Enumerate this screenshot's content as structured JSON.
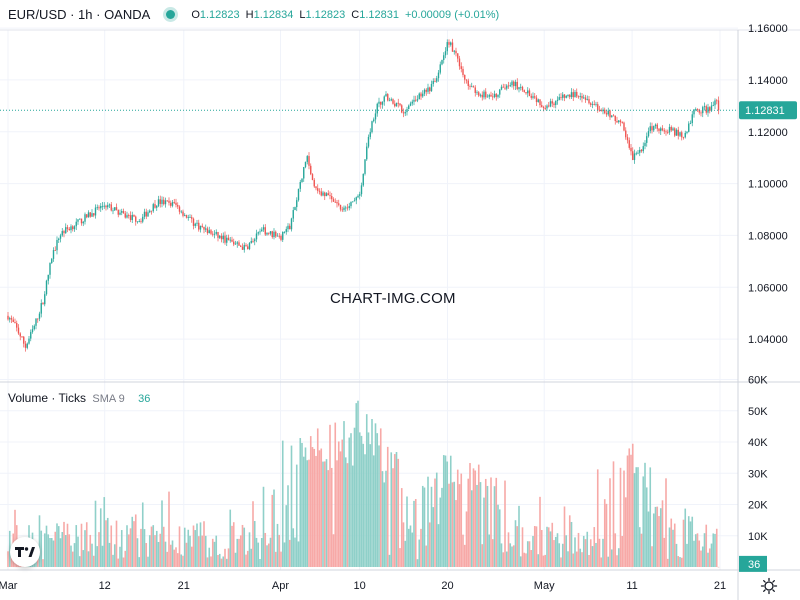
{
  "header": {
    "symbol": "EUR/USD · 1h · OANDA",
    "open_key": "O",
    "open": "1.12823",
    "high_key": "H",
    "high": "1.12834",
    "low_key": "L",
    "low": "1.12823",
    "close_key": "C",
    "close": "1.12831",
    "change": "+0.00009 (+0.01%)"
  },
  "volume_legend": {
    "title": "Volume · Ticks",
    "sma": "SMA 9",
    "value": "36"
  },
  "watermark": "CHART-IMG.COM",
  "colors": {
    "up": "#26a69a",
    "down": "#ef5350",
    "up_vol": "#8fd0c9",
    "down_vol": "#f7a9a7",
    "grid": "#f0f3fa",
    "text": "#131722"
  },
  "chart_data": {
    "type": "candlestick",
    "title": "EUR/USD · 1h · OANDA",
    "price_axis": {
      "ylim": [
        1.028,
        1.166
      ],
      "ticks": [
        1.04,
        1.06,
        1.08,
        1.1,
        1.12,
        1.14,
        1.16
      ],
      "tick_labels": [
        "1.04000",
        "1.06000",
        "1.08000",
        "1.10000",
        "1.12000",
        "1.14000",
        "1.16000"
      ],
      "last_price": 1.12831,
      "last_price_label": "1.12831"
    },
    "volume_axis": {
      "ylim": [
        0,
        60000
      ],
      "ticks": [
        10000,
        20000,
        30000,
        40000,
        50000,
        60000
      ],
      "tick_labels": [
        "10K",
        "20K",
        "30K",
        "40K",
        "50K",
        "60K"
      ],
      "last_value_label": "36"
    },
    "x_axis": {
      "range_days": [
        0,
        82
      ],
      "tick_days": [
        0,
        11,
        20,
        31,
        40,
        50,
        61,
        71,
        81
      ],
      "tick_labels": [
        "Mar",
        "12",
        "21",
        "Apr",
        "10",
        "20",
        "May",
        "11",
        "21"
      ]
    },
    "price_path": [
      {
        "day": 0,
        "close": 1.049
      },
      {
        "day": 1,
        "close": 1.044
      },
      {
        "day": 2,
        "close": 1.037
      },
      {
        "day": 3,
        "close": 1.045
      },
      {
        "day": 4,
        "close": 1.055
      },
      {
        "day": 5,
        "close": 1.072
      },
      {
        "day": 6,
        "close": 1.081
      },
      {
        "day": 8,
        "close": 1.085
      },
      {
        "day": 11,
        "close": 1.092
      },
      {
        "day": 13,
        "close": 1.088
      },
      {
        "day": 15,
        "close": 1.086
      },
      {
        "day": 17,
        "close": 1.093
      },
      {
        "day": 19,
        "close": 1.092
      },
      {
        "day": 21,
        "close": 1.085
      },
      {
        "day": 23,
        "close": 1.081
      },
      {
        "day": 25,
        "close": 1.078
      },
      {
        "day": 27,
        "close": 1.075
      },
      {
        "day": 29,
        "close": 1.082
      },
      {
        "day": 31,
        "close": 1.079
      },
      {
        "day": 32,
        "close": 1.083
      },
      {
        "day": 33,
        "close": 1.097
      },
      {
        "day": 34,
        "close": 1.11
      },
      {
        "day": 35,
        "close": 1.098
      },
      {
        "day": 37,
        "close": 1.093
      },
      {
        "day": 38,
        "close": 1.09
      },
      {
        "day": 39,
        "close": 1.092
      },
      {
        "day": 40,
        "close": 1.095
      },
      {
        "day": 41,
        "close": 1.118
      },
      {
        "day": 42,
        "close": 1.13
      },
      {
        "day": 43,
        "close": 1.134
      },
      {
        "day": 45,
        "close": 1.128
      },
      {
        "day": 46,
        "close": 1.131
      },
      {
        "day": 47,
        "close": 1.135
      },
      {
        "day": 48,
        "close": 1.136
      },
      {
        "day": 49,
        "close": 1.143
      },
      {
        "day": 50,
        "close": 1.155
      },
      {
        "day": 51,
        "close": 1.15
      },
      {
        "day": 52,
        "close": 1.14
      },
      {
        "day": 53,
        "close": 1.136
      },
      {
        "day": 55,
        "close": 1.133
      },
      {
        "day": 57,
        "close": 1.139
      },
      {
        "day": 59,
        "close": 1.136
      },
      {
        "day": 61,
        "close": 1.13
      },
      {
        "day": 63,
        "close": 1.133
      },
      {
        "day": 65,
        "close": 1.135
      },
      {
        "day": 67,
        "close": 1.13
      },
      {
        "day": 69,
        "close": 1.125
      },
      {
        "day": 70,
        "close": 1.122
      },
      {
        "day": 71,
        "close": 1.11
      },
      {
        "day": 72,
        "close": 1.112
      },
      {
        "day": 73,
        "close": 1.122
      },
      {
        "day": 75,
        "close": 1.121
      },
      {
        "day": 77,
        "close": 1.118
      },
      {
        "day": 78,
        "close": 1.128
      },
      {
        "day": 80,
        "close": 1.129
      },
      {
        "day": 81,
        "close": 1.134
      },
      {
        "day": 82,
        "close": 1.128
      }
    ],
    "volume_peaks": [
      {
        "day": 34,
        "value": 44000
      },
      {
        "day": 35,
        "value": 49000
      },
      {
        "day": 38,
        "value": 48000
      },
      {
        "day": 40,
        "value": 55000
      },
      {
        "day": 41,
        "value": 49000
      },
      {
        "day": 42,
        "value": 47000
      },
      {
        "day": 50,
        "value": 37000
      },
      {
        "day": 53,
        "value": 35000
      },
      {
        "day": 71,
        "value": 42000
      },
      {
        "day": 74,
        "value": 22000
      }
    ]
  }
}
